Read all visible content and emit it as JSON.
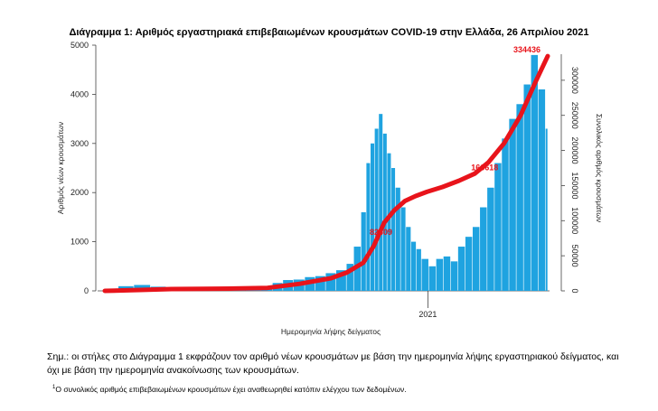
{
  "chart_data": {
    "type": "bar",
    "title": "Διάγραμμα 1: Αριθμός εργαστηριακά επιβεβαιωμένων κρουσμάτων COVID-19 στην Ελλάδα, 26 Απριλίου 2021",
    "xlabel": "Ημερομηνία λήψης δείγματος",
    "ylabel": "Αριθμός νέων κρουσμάτων",
    "y2label": "Συνολικός αριθμός κρουσμάτων",
    "ylim": [
      0,
      5000
    ],
    "y2lim": [
      0,
      350000
    ],
    "yticks": [
      0,
      1000,
      2000,
      3000,
      4000,
      5000
    ],
    "y2ticks": [
      0,
      50000,
      100000,
      150000,
      200000,
      250000,
      300000
    ],
    "xtick_labels": [
      "2021"
    ],
    "x_range": [
      "2020-02-26",
      "2021-04-26"
    ],
    "bar_color": "#1fa3e0",
    "line_color": "#e8141b",
    "series": [
      {
        "name": "daily",
        "kind": "bar",
        "x": [
          "2020-02-26",
          "2020-03-10",
          "2020-03-25",
          "2020-04-10",
          "2020-04-25",
          "2020-05-10",
          "2020-05-25",
          "2020-06-10",
          "2020-06-25",
          "2020-07-10",
          "2020-07-25",
          "2020-08-05",
          "2020-08-15",
          "2020-08-25",
          "2020-09-05",
          "2020-09-15",
          "2020-09-25",
          "2020-10-05",
          "2020-10-15",
          "2020-10-22",
          "2020-10-29",
          "2020-11-03",
          "2020-11-07",
          "2020-11-11",
          "2020-11-15",
          "2020-11-19",
          "2020-11-23",
          "2020-11-27",
          "2020-12-01",
          "2020-12-06",
          "2020-12-11",
          "2020-12-16",
          "2020-12-21",
          "2020-12-26",
          "2021-01-02",
          "2021-01-09",
          "2021-01-16",
          "2021-01-23",
          "2021-01-30",
          "2021-02-06",
          "2021-02-13",
          "2021-02-20",
          "2021-02-27",
          "2021-03-06",
          "2021-03-13",
          "2021-03-20",
          "2021-03-27",
          "2021-04-03",
          "2021-04-10",
          "2021-04-17",
          "2021-04-24"
        ],
        "values": [
          40,
          95,
          120,
          85,
          45,
          15,
          10,
          25,
          30,
          40,
          60,
          160,
          220,
          230,
          280,
          300,
          360,
          420,
          550,
          900,
          1600,
          2600,
          3000,
          3300,
          3600,
          3200,
          2800,
          2500,
          2100,
          1700,
          1300,
          1000,
          850,
          650,
          500,
          650,
          700,
          600,
          900,
          1100,
          1300,
          1700,
          2100,
          2600,
          3100,
          3500,
          3800,
          4200,
          4800,
          4100,
          3300
        ]
      },
      {
        "name": "cumulative",
        "kind": "line",
        "axis": "right",
        "x": [
          "2020-02-26",
          "2020-03-31",
          "2020-04-30",
          "2020-05-31",
          "2020-06-30",
          "2020-07-31",
          "2020-08-31",
          "2020-09-30",
          "2020-10-15",
          "2020-10-31",
          "2020-11-10",
          "2020-11-20",
          "2020-11-30",
          "2020-12-10",
          "2020-12-20",
          "2020-12-31",
          "2021-01-15",
          "2021-01-31",
          "2021-02-15",
          "2021-02-28",
          "2021-03-15",
          "2021-03-31",
          "2021-04-15",
          "2021-04-26"
        ],
        "values": [
          0,
          1300,
          2600,
          2900,
          3400,
          4300,
          10000,
          18000,
          26000,
          40000,
          64000,
          97000,
          115000,
          128000,
          135000,
          141000,
          148000,
          157000,
          167000,
          183000,
          210000,
          250000,
          300000,
          334436
        ]
      }
    ],
    "annotations": [
      "82609",
      "166618",
      "334436"
    ]
  },
  "note": "Σημ.: οι στήλες στο Διάγραμμα 1 εκφράζουν τον αριθμό νέων κρουσμάτων με βάση την ημερομηνία λήψης εργαστηριακού δείγματος, και όχι με βάση την ημερομηνία ανακοίνωσης των κρουσμάτων.",
  "footnote_marker": "1",
  "footnote": "Ο συνολικός αριθμός επιβεβαιωμένων κρουσμάτων έχει αναθεωρηθεί κατόπιν ελέγχου των δεδομένων."
}
